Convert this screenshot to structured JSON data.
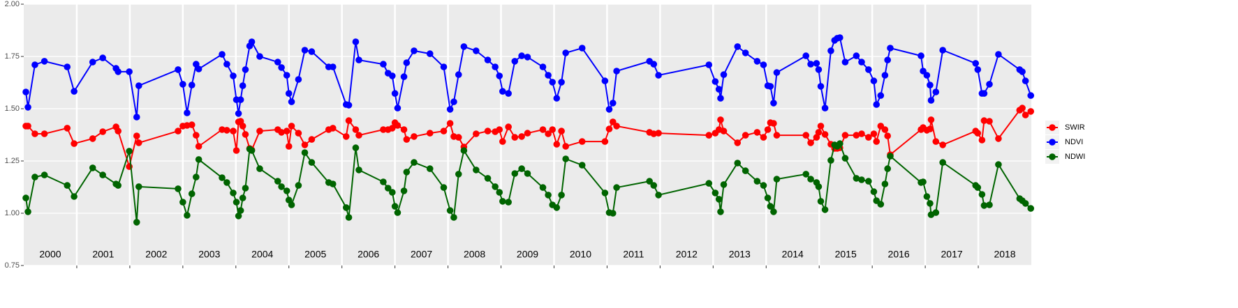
{
  "chart_data": {
    "type": "line",
    "x": [
      2000.04,
      2000.08,
      2000.21,
      2000.39,
      2000.82,
      2000.95,
      2001.3,
      2001.49,
      2001.74,
      2001.78,
      2001.99,
      2002.13,
      2002.17,
      2002.91,
      2003.0,
      2003.08,
      2003.17,
      2003.25,
      2003.3,
      2003.74,
      2003.83,
      2003.95,
      2004.01,
      2004.05,
      2004.09,
      2004.13,
      2004.18,
      2004.26,
      2004.3,
      2004.45,
      2004.79,
      2004.86,
      2004.96,
      2005.0,
      2005.05,
      2005.18,
      2005.3,
      2005.43,
      2005.75,
      2005.83,
      2006.08,
      2006.13,
      2006.26,
      2006.32,
      2006.78,
      2006.87,
      2006.95,
      2007.0,
      2007.05,
      2007.17,
      2007.22,
      2007.36,
      2007.66,
      2007.92,
      2008.04,
      2008.11,
      2008.2,
      2008.3,
      2008.53,
      2008.75,
      2008.89,
      2008.97,
      2009.03,
      2009.14,
      2009.26,
      2009.39,
      2009.5,
      2009.79,
      2009.89,
      2009.97,
      2010.05,
      2010.14,
      2010.22,
      2010.53,
      2010.96,
      2011.04,
      2011.11,
      2011.18,
      2011.8,
      2011.88,
      2011.97,
      2012.92,
      2013.04,
      2013.11,
      2013.14,
      2013.2,
      2013.46,
      2013.61,
      2013.83,
      2013.95,
      2014.03,
      2014.08,
      2014.14,
      2014.2,
      2014.75,
      2014.84,
      2014.95,
      2014.99,
      2015.03,
      2015.11,
      2015.22,
      2015.29,
      2015.34,
      2015.39,
      2015.49,
      2015.7,
      2015.8,
      2015.93,
      2016.03,
      2016.08,
      2016.16,
      2016.24,
      2016.29,
      2016.34,
      2016.92,
      2016.96,
      2017.03,
      2017.09,
      2017.11,
      2017.2,
      2017.33,
      2017.95,
      2017.99,
      2018.07,
      2018.11,
      2018.21,
      2018.38,
      2018.78,
      2018.83,
      2018.89,
      2018.99
    ],
    "series": [
      {
        "name": "SWIR",
        "color": "#ff0000",
        "values": [
          1.417,
          1.417,
          1.38,
          1.38,
          1.407,
          1.333,
          1.357,
          1.39,
          1.413,
          1.393,
          1.223,
          1.37,
          1.337,
          1.393,
          1.417,
          1.42,
          1.423,
          1.373,
          1.32,
          1.4,
          1.397,
          1.393,
          1.3,
          1.437,
          1.44,
          1.417,
          1.377,
          1.31,
          1.303,
          1.393,
          1.4,
          1.387,
          1.393,
          1.32,
          1.417,
          1.383,
          1.327,
          1.353,
          1.4,
          1.407,
          1.367,
          1.443,
          1.4,
          1.373,
          1.4,
          1.4,
          1.407,
          1.433,
          1.42,
          1.4,
          1.353,
          1.367,
          1.383,
          1.393,
          1.43,
          1.367,
          1.363,
          1.317,
          1.38,
          1.393,
          1.39,
          1.4,
          1.343,
          1.413,
          1.363,
          1.367,
          1.383,
          1.4,
          1.38,
          1.4,
          1.33,
          1.393,
          1.32,
          1.343,
          1.343,
          1.403,
          1.437,
          1.417,
          1.387,
          1.38,
          1.383,
          1.373,
          1.383,
          1.4,
          1.447,
          1.393,
          1.337,
          1.373,
          1.387,
          1.363,
          1.4,
          1.433,
          1.43,
          1.373,
          1.373,
          1.337,
          1.363,
          1.387,
          1.417,
          1.377,
          1.33,
          1.31,
          1.31,
          1.313,
          1.373,
          1.373,
          1.38,
          1.363,
          1.38,
          1.343,
          1.417,
          1.4,
          1.37,
          1.28,
          1.4,
          1.41,
          1.397,
          1.403,
          1.447,
          1.343,
          1.327,
          1.393,
          1.383,
          1.35,
          1.443,
          1.44,
          1.357,
          1.493,
          1.503,
          1.47,
          1.487
        ]
      },
      {
        "name": "NDVI",
        "color": "#0000ff",
        "values": [
          1.58,
          1.507,
          1.71,
          1.727,
          1.7,
          1.583,
          1.723,
          1.743,
          1.693,
          1.677,
          1.677,
          1.46,
          1.61,
          1.687,
          1.617,
          1.48,
          1.613,
          1.713,
          1.69,
          1.76,
          1.713,
          1.657,
          1.543,
          1.477,
          1.543,
          1.61,
          1.687,
          1.8,
          1.82,
          1.75,
          1.723,
          1.697,
          1.66,
          1.573,
          1.533,
          1.64,
          1.78,
          1.773,
          1.7,
          1.7,
          1.52,
          1.517,
          1.82,
          1.733,
          1.713,
          1.67,
          1.657,
          1.573,
          1.503,
          1.653,
          1.72,
          1.777,
          1.763,
          1.7,
          1.497,
          1.533,
          1.663,
          1.797,
          1.777,
          1.733,
          1.7,
          1.657,
          1.583,
          1.573,
          1.727,
          1.753,
          1.747,
          1.7,
          1.66,
          1.627,
          1.55,
          1.627,
          1.767,
          1.79,
          1.633,
          1.497,
          1.527,
          1.68,
          1.727,
          1.713,
          1.66,
          1.71,
          1.63,
          1.593,
          1.55,
          1.663,
          1.797,
          1.767,
          1.727,
          1.71,
          1.61,
          1.607,
          1.527,
          1.673,
          1.753,
          1.713,
          1.717,
          1.687,
          1.607,
          1.503,
          1.777,
          1.827,
          1.837,
          1.84,
          1.723,
          1.753,
          1.723,
          1.687,
          1.633,
          1.52,
          1.563,
          1.66,
          1.733,
          1.79,
          1.753,
          1.68,
          1.66,
          1.613,
          1.54,
          1.58,
          1.78,
          1.717,
          1.687,
          1.573,
          1.573,
          1.617,
          1.76,
          1.687,
          1.677,
          1.633,
          1.563
        ]
      },
      {
        "name": "NDWI",
        "color": "#006400",
        "values": [
          1.073,
          1.007,
          1.173,
          1.183,
          1.133,
          1.08,
          1.217,
          1.183,
          1.14,
          1.133,
          1.297,
          0.957,
          1.127,
          1.117,
          1.053,
          0.99,
          1.093,
          1.173,
          1.257,
          1.17,
          1.147,
          1.097,
          1.053,
          0.987,
          1.013,
          1.073,
          1.12,
          1.307,
          1.3,
          1.213,
          1.153,
          1.127,
          1.107,
          1.063,
          1.04,
          1.133,
          1.29,
          1.243,
          1.147,
          1.14,
          1.027,
          0.98,
          1.313,
          1.207,
          1.15,
          1.12,
          1.1,
          1.033,
          1.003,
          1.107,
          1.197,
          1.243,
          1.213,
          1.123,
          1.013,
          0.98,
          1.187,
          1.3,
          1.207,
          1.167,
          1.127,
          1.1,
          1.057,
          1.053,
          1.19,
          1.213,
          1.19,
          1.123,
          1.087,
          1.04,
          1.027,
          1.087,
          1.26,
          1.23,
          1.097,
          1.003,
          1.0,
          1.123,
          1.153,
          1.133,
          1.087,
          1.143,
          1.097,
          1.067,
          1.007,
          1.137,
          1.24,
          1.203,
          1.153,
          1.133,
          1.073,
          1.033,
          1.007,
          1.163,
          1.187,
          1.163,
          1.147,
          1.127,
          1.057,
          1.017,
          1.253,
          1.327,
          1.32,
          1.333,
          1.263,
          1.167,
          1.16,
          1.153,
          1.103,
          1.06,
          1.043,
          1.14,
          1.213,
          1.273,
          1.147,
          1.15,
          1.08,
          1.047,
          0.993,
          1.003,
          1.243,
          1.133,
          1.123,
          1.09,
          1.037,
          1.04,
          1.233,
          1.07,
          1.06,
          1.047,
          1.023
        ]
      }
    ],
    "xlim": [
      2000,
      2019
    ],
    "xticks": [
      2001,
      2002,
      2003,
      2004,
      2005,
      2006,
      2007,
      2008,
      2009,
      2010,
      2011,
      2012,
      2013,
      2014,
      2015,
      2016,
      2017,
      2018
    ],
    "ylim": [
      0.75,
      2
    ],
    "yticks": [
      0.75,
      {
        "value": 1,
        "label": "1.00"
      },
      1.25,
      {
        "value": 1.5,
        "label": "1.50"
      },
      1.75,
      {
        "value": 2,
        "label": "2.00"
      }
    ],
    "grid": true,
    "legend": "right",
    "annotations": [
      {
        "text": "2000",
        "x": 2000.5,
        "y": 0.8
      },
      {
        "text": "2001",
        "x": 2001.5,
        "y": 0.8
      },
      {
        "text": "2002",
        "x": 2002.5,
        "y": 0.8
      },
      {
        "text": "2003",
        "x": 2003.5,
        "y": 0.8
      },
      {
        "text": "2004",
        "x": 2004.5,
        "y": 0.8
      },
      {
        "text": "2005",
        "x": 2005.5,
        "y": 0.8
      },
      {
        "text": "2006",
        "x": 2006.5,
        "y": 0.8
      },
      {
        "text": "2007",
        "x": 2007.5,
        "y": 0.8
      },
      {
        "text": "2008",
        "x": 2008.5,
        "y": 0.8
      },
      {
        "text": "2009",
        "x": 2009.5,
        "y": 0.8
      },
      {
        "text": "2010",
        "x": 2010.5,
        "y": 0.8
      },
      {
        "text": "2011",
        "x": 2011.5,
        "y": 0.8
      },
      {
        "text": "2012",
        "x": 2012.5,
        "y": 0.8
      },
      {
        "text": "2013",
        "x": 2013.5,
        "y": 0.8
      },
      {
        "text": "2014",
        "x": 2014.5,
        "y": 0.8
      },
      {
        "text": "2015",
        "x": 2015.5,
        "y": 0.8
      },
      {
        "text": "2016",
        "x": 2016.5,
        "y": 0.8
      },
      {
        "text": "2017",
        "x": 2017.5,
        "y": 0.8
      },
      {
        "text": "2018",
        "x": 2018.5,
        "y": 0.8
      }
    ]
  }
}
